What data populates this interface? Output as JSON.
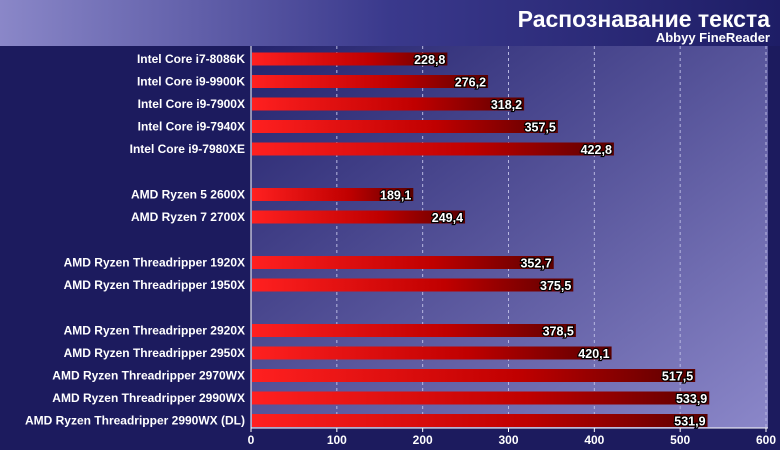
{
  "header": {
    "title": "Распознавание текста",
    "subtitle": "Abbyy FineReader"
  },
  "colors": {
    "background": "#1c1b5e",
    "header_band": "#3b3a8c",
    "bar_start": "#ff1a1a",
    "bar_end": "#6a0000",
    "label_text": "#ffffff",
    "value_text": "#ffffff",
    "grid": "#b7b7e0"
  },
  "chart_data": {
    "type": "bar",
    "orientation": "horizontal",
    "title": "Распознавание текста",
    "subtitle": "Abbyy FineReader",
    "xlabel": "",
    "ylabel": "",
    "xlim": [
      0,
      600
    ],
    "ticks": [
      0,
      100,
      200,
      300,
      400,
      500,
      600
    ],
    "grid": true,
    "legend": "none",
    "groups": [
      {
        "categories": [
          "Intel Core i7-8086K",
          "Intel Core i9-9900K",
          "Intel Core i9-7900X",
          "Intel Core i9-7940X",
          "Intel Core i9-7980XE"
        ],
        "values": [
          228.8,
          276.2,
          318.2,
          357.5,
          422.8
        ],
        "value_labels": [
          "228,8",
          "276,2",
          "318,2",
          "357,5",
          "422,8"
        ]
      },
      {
        "categories": [
          "AMD Ryzen 5 2600X",
          "AMD Ryzen 7 2700X"
        ],
        "values": [
          189.1,
          249.4
        ],
        "value_labels": [
          "189,1",
          "249,4"
        ]
      },
      {
        "categories": [
          "AMD Ryzen Threadripper 1920X",
          "AMD Ryzen Threadripper 1950X"
        ],
        "values": [
          352.7,
          375.5
        ],
        "value_labels": [
          "352,7",
          "375,5"
        ]
      },
      {
        "categories": [
          "AMD Ryzen Threadripper 2920X",
          "AMD Ryzen Threadripper 2950X",
          "AMD Ryzen Threadripper 2970WX",
          "AMD Ryzen Threadripper 2990WX",
          "AMD Ryzen Threadripper 2990WX (DL)"
        ],
        "values": [
          378.5,
          420.1,
          517.5,
          533.9,
          531.9
        ],
        "value_labels": [
          "378,5",
          "420,1",
          "517,5",
          "533,9",
          "531,9"
        ]
      }
    ]
  }
}
